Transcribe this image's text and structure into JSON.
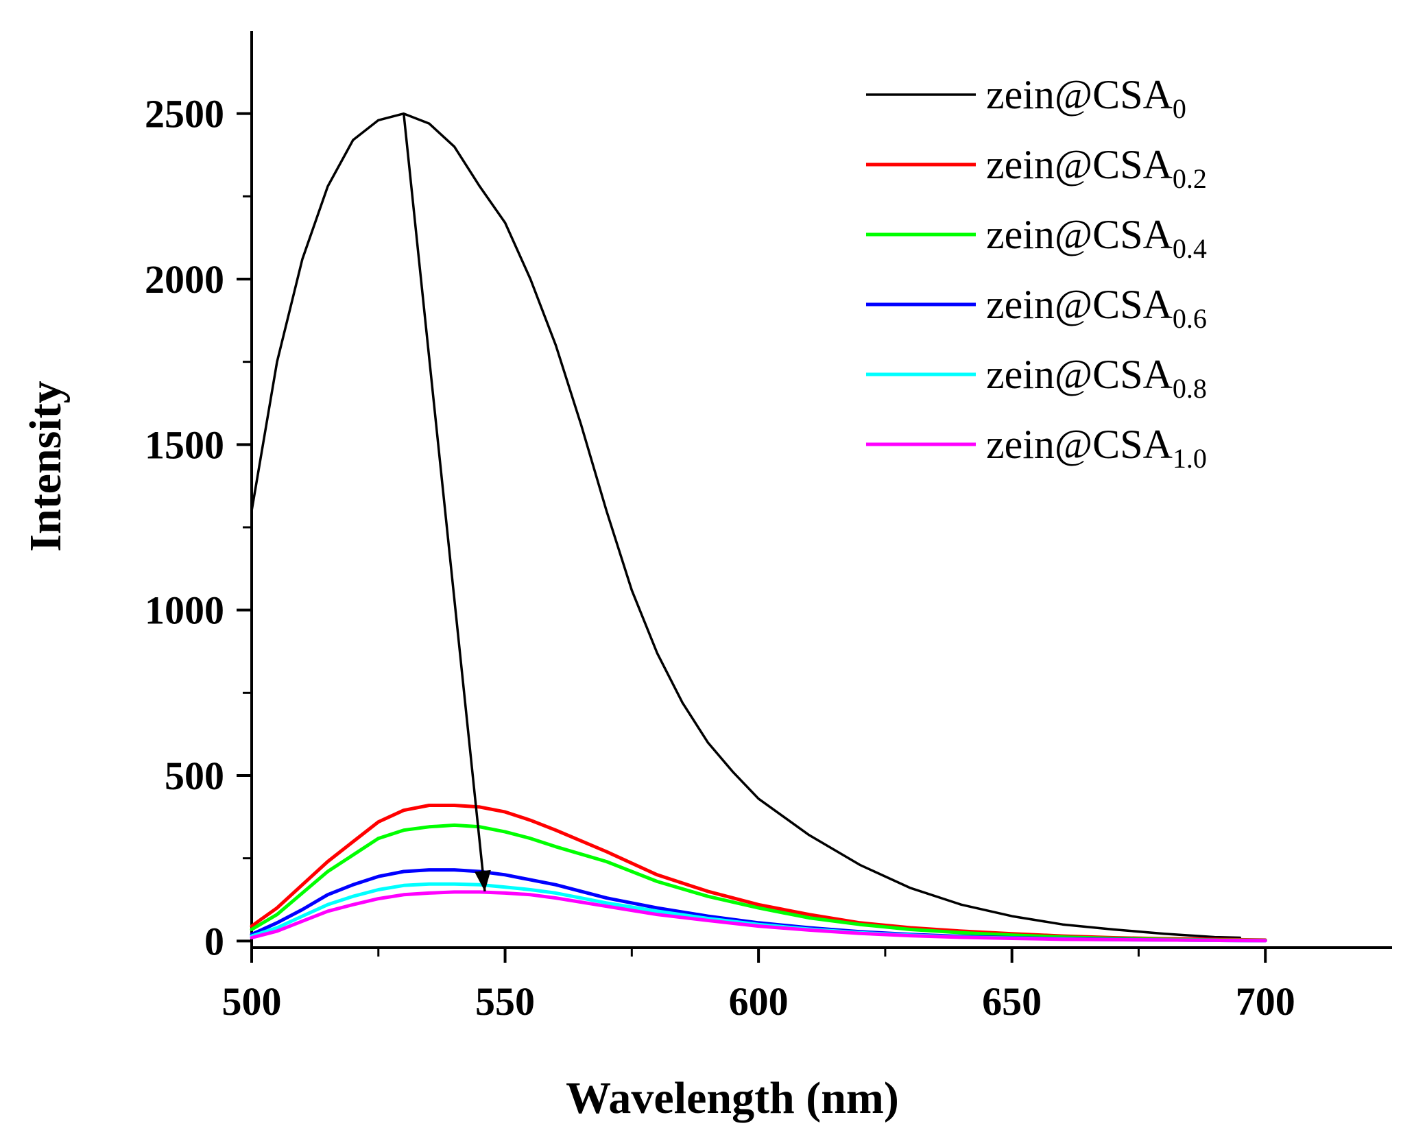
{
  "chart_data": {
    "type": "line",
    "xlabel": "Wavelength (nm)",
    "ylabel": "Intensity",
    "xlim": [
      500,
      725
    ],
    "ylim": [
      -20,
      2750
    ],
    "x_ticks": [
      500,
      550,
      600,
      650,
      700
    ],
    "y_ticks": [
      0,
      500,
      1000,
      1500,
      2000,
      2500
    ],
    "grid": false,
    "legend_position": "top-right",
    "series": [
      {
        "name_base": "zein@CSA",
        "name_sub": "0",
        "color": "#000000",
        "x": [
          500,
          505,
          510,
          515,
          520,
          525,
          530,
          535,
          540,
          545,
          550,
          555,
          560,
          565,
          570,
          575,
          580,
          585,
          590,
          595,
          600,
          610,
          620,
          630,
          640,
          650,
          660,
          670,
          680,
          690,
          695
        ],
        "y": [
          1300,
          1750,
          2060,
          2280,
          2420,
          2480,
          2500,
          2470,
          2400,
          2280,
          2170,
          2000,
          1800,
          1560,
          1300,
          1060,
          870,
          720,
          600,
          510,
          430,
          320,
          230,
          160,
          110,
          75,
          50,
          35,
          22,
          12,
          10
        ]
      },
      {
        "name_base": "zein@CSA",
        "name_sub": "0.2",
        "color": "#ff0000",
        "x": [
          500,
          505,
          510,
          515,
          520,
          525,
          530,
          535,
          540,
          545,
          550,
          555,
          560,
          570,
          580,
          590,
          600,
          610,
          620,
          630,
          640,
          650,
          660,
          670,
          680,
          690,
          700
        ],
        "y": [
          45,
          100,
          170,
          240,
          300,
          360,
          395,
          410,
          410,
          405,
          390,
          365,
          335,
          270,
          200,
          150,
          110,
          80,
          55,
          40,
          30,
          22,
          15,
          10,
          7,
          5,
          3
        ]
      },
      {
        "name_base": "zein@CSA",
        "name_sub": "0.4",
        "color": "#00ff00",
        "x": [
          500,
          505,
          510,
          515,
          520,
          525,
          530,
          535,
          540,
          545,
          550,
          555,
          560,
          570,
          580,
          590,
          600,
          610,
          620,
          630,
          640,
          650,
          660,
          670,
          680,
          690,
          700
        ],
        "y": [
          35,
          80,
          145,
          210,
          260,
          310,
          335,
          345,
          350,
          345,
          330,
          310,
          285,
          240,
          180,
          135,
          100,
          70,
          50,
          35,
          25,
          18,
          12,
          8,
          5,
          3,
          2
        ]
      },
      {
        "name_base": "zein@CSA",
        "name_sub": "0.6",
        "color": "#0000ff",
        "x": [
          500,
          505,
          510,
          515,
          520,
          525,
          530,
          535,
          540,
          545,
          550,
          555,
          560,
          570,
          580,
          590,
          600,
          610,
          620,
          630,
          640,
          650,
          660,
          670,
          680,
          690,
          700
        ],
        "y": [
          20,
          55,
          95,
          140,
          170,
          195,
          210,
          215,
          215,
          210,
          200,
          185,
          170,
          130,
          100,
          75,
          55,
          40,
          28,
          20,
          14,
          10,
          7,
          5,
          3,
          2,
          1
        ]
      },
      {
        "name_base": "zein@CSA",
        "name_sub": "0.8",
        "color": "#00ffff",
        "x": [
          500,
          505,
          510,
          515,
          520,
          525,
          530,
          535,
          540,
          545,
          550,
          555,
          560,
          570,
          580,
          590,
          600,
          610,
          620,
          630,
          640,
          650,
          660,
          670,
          680,
          690,
          700
        ],
        "y": [
          15,
          40,
          75,
          110,
          135,
          155,
          168,
          172,
          172,
          170,
          163,
          155,
          145,
          115,
          90,
          68,
          50,
          36,
          25,
          18,
          12,
          9,
          6,
          4,
          3,
          2,
          1
        ]
      },
      {
        "name_base": "zein@CSA",
        "name_sub": "1.0",
        "color": "#ff00ff",
        "x": [
          500,
          505,
          510,
          515,
          520,
          525,
          530,
          535,
          540,
          545,
          550,
          555,
          560,
          570,
          580,
          590,
          600,
          610,
          620,
          630,
          640,
          650,
          660,
          670,
          680,
          690,
          700
        ],
        "y": [
          10,
          30,
          60,
          90,
          110,
          128,
          140,
          145,
          148,
          148,
          145,
          140,
          130,
          105,
          80,
          62,
          45,
          33,
          23,
          16,
          11,
          8,
          5,
          4,
          3,
          2,
          1
        ]
      }
    ],
    "annotations": [
      {
        "type": "arrow",
        "from": [
          530,
          2500
        ],
        "to": [
          546,
          150
        ],
        "color": "#000000"
      }
    ]
  }
}
